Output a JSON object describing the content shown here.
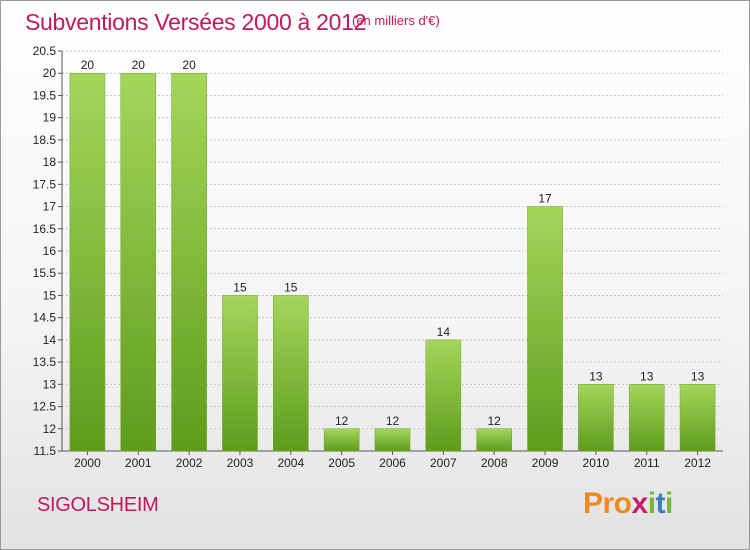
{
  "header": {
    "title": "Subventions Versées 2000 à 2012",
    "subtitle": "(en milliers d'€)"
  },
  "footer": {
    "commune": "SIGOLSHEIM",
    "logo_text": "Proxiti"
  },
  "colors": {
    "title": "#c2185b",
    "bar_top": "#a4d65a",
    "bar_bottom": "#5e9c1c",
    "grid": "#bbbbbb"
  },
  "chart_data": {
    "type": "bar",
    "title": "Subventions Versées 2000 à 2012",
    "subtitle": "(en milliers d'€)",
    "xlabel": "",
    "ylabel": "",
    "categories": [
      "2000",
      "2001",
      "2002",
      "2003",
      "2004",
      "2005",
      "2006",
      "2007",
      "2008",
      "2009",
      "2010",
      "2011",
      "2012"
    ],
    "values": [
      20,
      20,
      20,
      15,
      15,
      12,
      12,
      14,
      12,
      17,
      13,
      13,
      13
    ],
    "ylim": [
      11.5,
      20.5
    ],
    "yticks": [
      11.5,
      12,
      12.5,
      13,
      13.5,
      14,
      14.5,
      15,
      15.5,
      16,
      16.5,
      17,
      17.5,
      18,
      18.5,
      19,
      19.5,
      20,
      20.5
    ],
    "grid": true,
    "legend": "none"
  }
}
